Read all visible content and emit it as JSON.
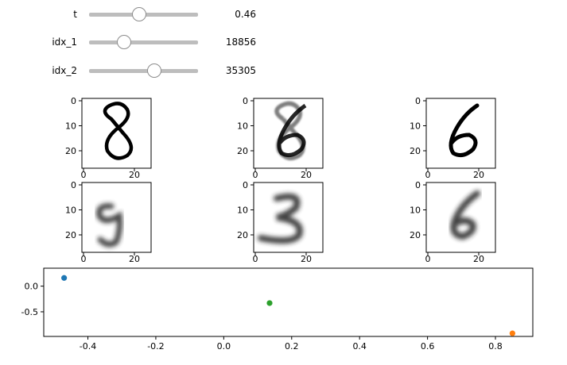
{
  "sliders": [
    {
      "label": "t",
      "value": "0.46",
      "fraction": 0.46
    },
    {
      "label": "idx_1",
      "value": "18856",
      "fraction": 0.32
    },
    {
      "label": "idx_2",
      "value": "35305",
      "fraction": 0.6
    }
  ],
  "image_grid": {
    "tick_labels": [
      "0",
      "10",
      "20"
    ],
    "x_tick_labels": [
      "0",
      "20"
    ],
    "panels": [
      {
        "name": "input-8",
        "digit": "8",
        "style": "sharp"
      },
      {
        "name": "interpolated-input",
        "digit": "8/6",
        "style": "blend"
      },
      {
        "name": "input-6",
        "digit": "6",
        "style": "sharp"
      },
      {
        "name": "reconstruction-9",
        "digit": "9",
        "style": "blur"
      },
      {
        "name": "reconstruction-3",
        "digit": "3",
        "style": "blur"
      },
      {
        "name": "reconstruction-6",
        "digit": "6",
        "style": "blur"
      }
    ]
  },
  "chart_data": {
    "type": "scatter",
    "xlim": [
      -0.53,
      0.91
    ],
    "ylim": [
      -0.98,
      0.35
    ],
    "x_ticks": [
      "-0.4",
      "-0.2",
      "0.0",
      "0.2",
      "0.4",
      "0.6",
      "0.8"
    ],
    "y_ticks": [
      "0.0",
      "-0.5"
    ],
    "grid": false,
    "points": [
      {
        "x": -0.47,
        "y": 0.16,
        "color": "#1f77b4"
      },
      {
        "x": 0.85,
        "y": -0.92,
        "color": "#ff7f0e"
      },
      {
        "x": 0.135,
        "y": -0.33,
        "color": "#2ca02c"
      }
    ]
  }
}
